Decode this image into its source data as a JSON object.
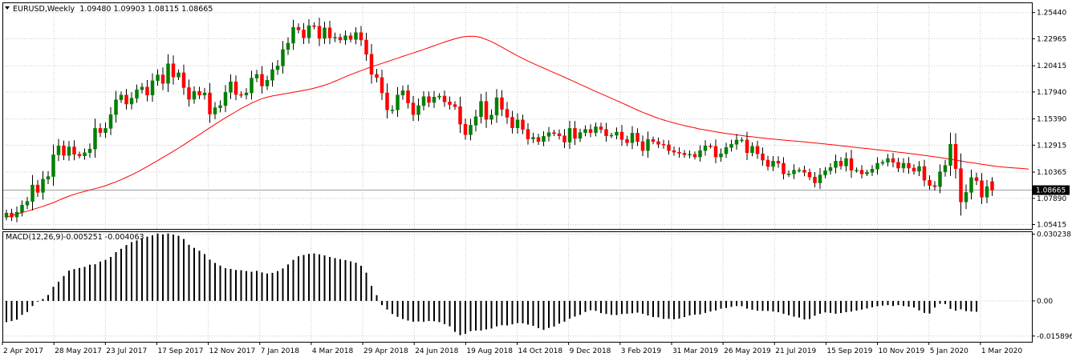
{
  "window": {
    "symbol_title": "EURUSD,Weekly",
    "ohlc_text": "1.09480 1.09903 1.08115 1.08665"
  },
  "indicator": {
    "label": "MACD(12,26,9)",
    "values_text": "-0.005251 -0.004063"
  },
  "colors": {
    "bull": "#008000",
    "bear": "#ff0000",
    "ma_line": "#ff0000",
    "macd_bar": "#000000",
    "grid": "#c8c8c8",
    "frame": "#000000",
    "background": "#ffffff",
    "current_price_tag_bg": "#000000",
    "current_price_tag_fg": "#ffffff"
  },
  "chart_data": [
    {
      "type": "candlestick",
      "instrument": "EURUSD",
      "timeframe": "Weekly",
      "ylim": [
        1.05,
        1.264
      ],
      "y_ticks": [
        "1.25440",
        "1.22965",
        "1.20415",
        "1.17940",
        "1.15390",
        "1.12915",
        "1.10365",
        "1.07890",
        "1.05415"
      ],
      "current_price": "1.08665",
      "x_labels": [
        "2 Apr 2017",
        "28 May 2017",
        "23 Jul 2017",
        "17 Sep 2017",
        "12 Nov 2017",
        "7 Jan 2018",
        "4 Mar 2018",
        "29 Apr 2018",
        "24 Jun 2018",
        "19 Aug 2018",
        "14 Oct 2018",
        "9 Dec 2018",
        "3 Feb 2019",
        "31 Mar 2019",
        "26 May 2019",
        "21 Jul 2019",
        "15 Sep 2019",
        "10 Nov 2019",
        "5 Jan 2020",
        "1 Mar 2020"
      ],
      "close": [
        1.065,
        1.0612,
        1.0658,
        1.0725,
        1.076,
        1.0915,
        1.0845,
        1.097,
        1.0995,
        1.12,
        1.1285,
        1.1195,
        1.1275,
        1.1205,
        1.119,
        1.122,
        1.1255,
        1.145,
        1.141,
        1.145,
        1.158,
        1.172,
        1.1765,
        1.168,
        1.1735,
        1.1815,
        1.184,
        1.1765,
        1.19,
        1.1955,
        1.1875,
        1.206,
        1.1935,
        1.1975,
        1.1835,
        1.1725,
        1.18,
        1.1765,
        1.1785,
        1.1585,
        1.1645,
        1.1665,
        1.179,
        1.189,
        1.177,
        1.1765,
        1.1785,
        1.1925,
        1.196,
        1.185,
        1.1905,
        1.2005,
        1.204,
        1.2195,
        1.2255,
        1.2405,
        1.238,
        1.2305,
        1.242,
        1.2415,
        1.23,
        1.24,
        1.2305,
        1.231,
        1.2285,
        1.2325,
        1.229,
        1.2355,
        1.2285,
        1.215,
        1.196,
        1.193,
        1.1785,
        1.1625,
        1.1625,
        1.1765,
        1.1805,
        1.169,
        1.158,
        1.1665,
        1.175,
        1.1695,
        1.1745,
        1.1755,
        1.17,
        1.1675,
        1.1655,
        1.149,
        1.139,
        1.148,
        1.156,
        1.1705,
        1.1535,
        1.1575,
        1.174,
        1.163,
        1.1555,
        1.1455,
        1.153,
        1.144,
        1.135,
        1.1365,
        1.1325,
        1.1375,
        1.141,
        1.14,
        1.138,
        1.132,
        1.145,
        1.1355,
        1.141,
        1.144,
        1.141,
        1.1465,
        1.144,
        1.138,
        1.1385,
        1.1415,
        1.1345,
        1.1315,
        1.1405,
        1.1325,
        1.124,
        1.1345,
        1.1325,
        1.13,
        1.1295,
        1.124,
        1.1225,
        1.1215,
        1.12,
        1.1205,
        1.118,
        1.124,
        1.1285,
        1.128,
        1.118,
        1.121,
        1.127,
        1.13,
        1.134,
        1.134,
        1.122,
        1.128,
        1.121,
        1.115,
        1.109,
        1.114,
        1.112,
        1.102,
        1.102,
        1.1055,
        1.1055,
        1.1035,
        1.099,
        1.0935,
        1.101,
        1.105,
        1.108,
        1.114,
        1.1095,
        1.1165,
        1.1055,
        1.1055,
        1.102,
        1.1035,
        1.1065,
        1.112,
        1.113,
        1.1165,
        1.113,
        1.1075,
        1.112,
        1.1075,
        1.1045,
        1.109,
        1.096,
        1.091,
        1.09,
        1.104,
        1.11,
        1.13,
        1.107,
        1.0755,
        1.0845,
        1.0985,
        1.0955,
        1.08,
        1.09,
        1.0866
      ],
      "overlay_ma": [
        1.0612,
        1.0625,
        1.064,
        1.0655,
        1.0668,
        1.0683,
        1.0698,
        1.0713,
        1.0731,
        1.0749,
        1.077,
        1.0791,
        1.081,
        1.0827,
        1.0842,
        1.0855,
        1.0868,
        1.088,
        1.0893,
        1.0908,
        1.0927,
        1.0945,
        1.0966,
        1.0988,
        1.1011,
        1.1035,
        1.1062,
        1.1089,
        1.1118,
        1.1146,
        1.1175,
        1.1204,
        1.1233,
        1.1264,
        1.1295,
        1.1327,
        1.1359,
        1.1391,
        1.1424,
        1.1456,
        1.1488,
        1.1519,
        1.155,
        1.1579,
        1.1608,
        1.1637,
        1.1663,
        1.1689,
        1.1711,
        1.173,
        1.1745,
        1.1756,
        1.1765,
        1.1774,
        1.1782,
        1.1791,
        1.18,
        1.1809,
        1.1818,
        1.183,
        1.1843,
        1.1857,
        1.1875,
        1.1895,
        1.1916,
        1.1938,
        1.1958,
        1.1977,
        1.1996,
        1.2014,
        1.2031,
        1.2048,
        1.2064,
        1.208,
        1.2097,
        1.2113,
        1.213,
        1.2146,
        1.2162,
        1.2179,
        1.2195,
        1.2213,
        1.2231,
        1.2248,
        1.2265,
        1.2281,
        1.2296,
        1.2309,
        1.2318,
        1.2321,
        1.2319,
        1.2308,
        1.229,
        1.2269,
        1.2244,
        1.2217,
        1.2189,
        1.2162,
        1.2135,
        1.211,
        1.2086,
        1.2063,
        1.2041,
        1.202,
        1.1998,
        1.1976,
        1.1955,
        1.1933,
        1.1911,
        1.1889,
        1.1866,
        1.1844,
        1.1821,
        1.1798,
        1.1777,
        1.1756,
        1.1734,
        1.1712,
        1.169,
        1.1668,
        1.1645,
        1.1623,
        1.1602,
        1.1582,
        1.1563,
        1.1545,
        1.1529,
        1.1515,
        1.1501,
        1.1488,
        1.1476,
        1.1465,
        1.1454,
        1.1444,
        1.1435,
        1.1426,
        1.1418,
        1.141,
        1.1402,
        1.1395,
        1.1389,
        1.1382,
        1.1376,
        1.137,
        1.1364,
        1.1359,
        1.1353,
        1.1349,
        1.1344,
        1.1339,
        1.1335,
        1.1331,
        1.1326,
        1.1322,
        1.1317,
        1.1312,
        1.1307,
        1.1302,
        1.1297,
        1.1292,
        1.1286,
        1.1281,
        1.1275,
        1.127,
        1.1264,
        1.1259,
        1.1253,
        1.1248,
        1.1243,
        1.1237,
        1.1231,
        1.1225,
        1.122,
        1.1214,
        1.1208,
        1.1202,
        1.1195,
        1.1188,
        1.1181,
        1.1174,
        1.1166,
        1.1158,
        1.115,
        1.1142,
        1.1134,
        1.1126,
        1.1119,
        1.1111,
        1.1104,
        1.1097,
        1.109,
        1.1085,
        1.1081,
        1.1077,
        1.1074,
        1.107,
        1.1065
      ],
      "indicator": {
        "name": "MACD(12,26,9)",
        "ylim": [
          -0.0185,
          0.0315
        ],
        "y_ticks": [
          "0.030238",
          "0.00",
          "-0.015896"
        ],
        "histogram": [
          -0.0096,
          -0.0091,
          -0.0085,
          -0.0063,
          -0.005,
          -0.0023,
          -0.0003,
          0.0009,
          0.0027,
          0.0064,
          0.0087,
          0.0113,
          0.0137,
          0.0144,
          0.0149,
          0.0154,
          0.0164,
          0.0166,
          0.0178,
          0.0186,
          0.0199,
          0.0221,
          0.0236,
          0.0253,
          0.0266,
          0.0274,
          0.0284,
          0.0291,
          0.0297,
          0.0305,
          0.0301,
          0.0305,
          0.03,
          0.0295,
          0.028,
          0.0254,
          0.024,
          0.0227,
          0.0212,
          0.0187,
          0.0172,
          0.016,
          0.0148,
          0.0145,
          0.014,
          0.0139,
          0.0135,
          0.0132,
          0.0136,
          0.0129,
          0.0124,
          0.0127,
          0.0135,
          0.0147,
          0.0165,
          0.0186,
          0.0202,
          0.0208,
          0.0213,
          0.0215,
          0.0211,
          0.0206,
          0.0199,
          0.0194,
          0.0189,
          0.0185,
          0.0179,
          0.0173,
          0.0159,
          0.0128,
          0.0068,
          0.0026,
          -0.0019,
          -0.0039,
          -0.0059,
          -0.0072,
          -0.0082,
          -0.0089,
          -0.0094,
          -0.0093,
          -0.0094,
          -0.0091,
          -0.0092,
          -0.0096,
          -0.0105,
          -0.0115,
          -0.014,
          -0.0155,
          -0.0149,
          -0.0137,
          -0.0134,
          -0.0134,
          -0.0129,
          -0.0125,
          -0.0115,
          -0.011,
          -0.0111,
          -0.0106,
          -0.01,
          -0.0101,
          -0.0107,
          -0.0113,
          -0.0123,
          -0.0131,
          -0.0122,
          -0.0116,
          -0.0103,
          -0.0094,
          -0.008,
          -0.0071,
          -0.0063,
          -0.005,
          -0.0042,
          -0.0045,
          -0.0055,
          -0.0059,
          -0.0063,
          -0.0064,
          -0.0059,
          -0.0058,
          -0.0056,
          -0.0053,
          -0.0058,
          -0.0066,
          -0.0073,
          -0.0074,
          -0.0081,
          -0.0081,
          -0.0083,
          -0.008,
          -0.0073,
          -0.0066,
          -0.0062,
          -0.0061,
          -0.0054,
          -0.0048,
          -0.0043,
          -0.0035,
          -0.0032,
          -0.0027,
          -0.0023,
          -0.0024,
          -0.0035,
          -0.004,
          -0.0044,
          -0.0045,
          -0.0045,
          -0.0048,
          -0.0051,
          -0.0058,
          -0.0065,
          -0.0071,
          -0.0075,
          -0.0084,
          -0.0082,
          -0.0067,
          -0.0058,
          -0.0052,
          -0.0054,
          -0.0058,
          -0.0055,
          -0.0051,
          -0.0048,
          -0.0044,
          -0.0039,
          -0.0034,
          -0.0029,
          -0.0024,
          -0.0021,
          -0.0019,
          -0.0023,
          -0.0019,
          -0.0023,
          -0.0026,
          -0.003,
          -0.0043,
          -0.0054,
          -0.0057,
          -0.003,
          -0.0013,
          -0.0014,
          -0.0036,
          -0.0044,
          -0.0038,
          -0.0046,
          -0.0048,
          -0.0049
        ]
      }
    }
  ]
}
